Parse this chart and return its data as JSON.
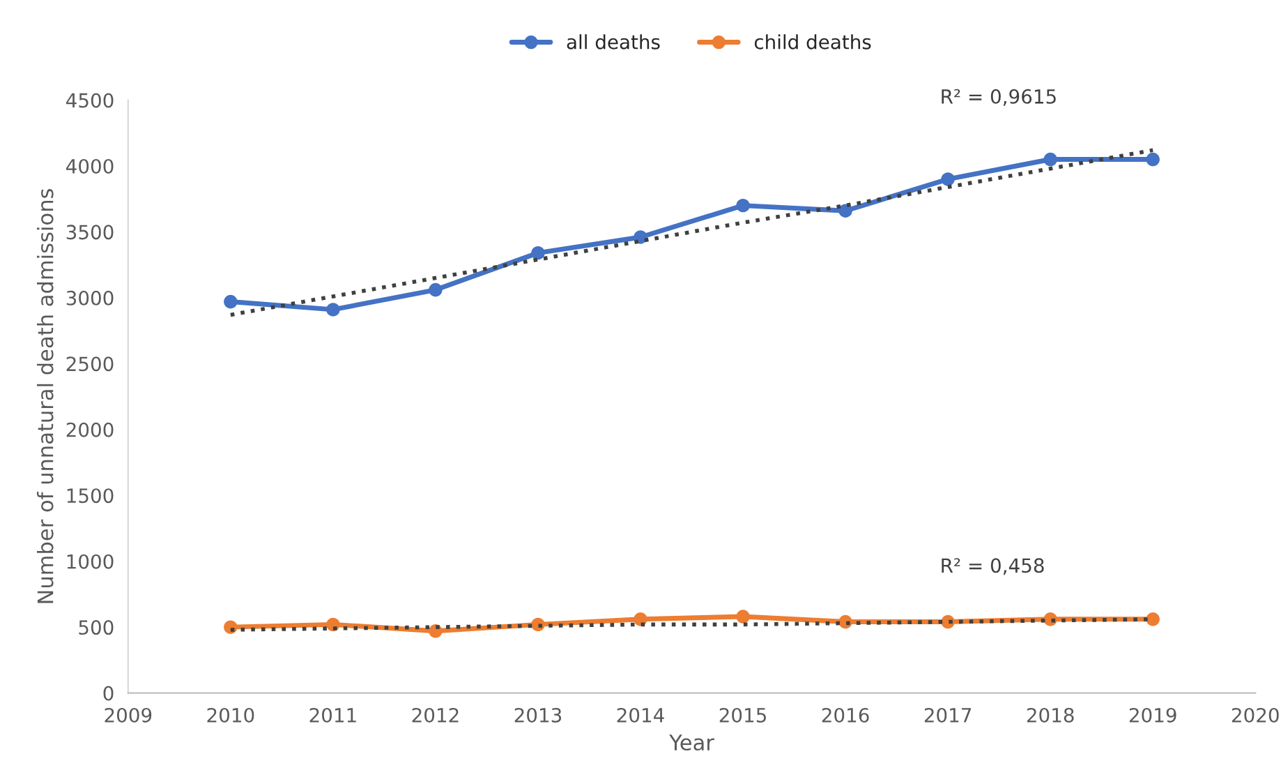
{
  "chart_data": {
    "type": "line",
    "xlabel": "Year",
    "ylabel": "Number of unnatural death admissions",
    "x": [
      2010,
      2011,
      2012,
      2013,
      2014,
      2015,
      2016,
      2017,
      2018,
      2019
    ],
    "series": [
      {
        "name": "all deaths",
        "color": "#4472c4",
        "values": [
          2970,
          2910,
          3060,
          3340,
          3460,
          3700,
          3660,
          3900,
          4050,
          4050
        ],
        "marker": "circle",
        "line_style": "solid"
      },
      {
        "name": "child deaths",
        "color": "#ed7d31",
        "values": [
          500,
          520,
          470,
          520,
          560,
          580,
          540,
          540,
          560,
          560
        ],
        "marker": "circle",
        "line_style": "solid"
      },
      {
        "type": "line",
        "color": "#404040",
        "values": [
          2870,
          3010,
          3150,
          3290,
          3430,
          3570,
          3700,
          3840,
          3980,
          4120
        ],
        "marker": "none",
        "line_style": "dotted"
      },
      {
        "type": "line",
        "color": "#404040",
        "values": [
          480,
          490,
          500,
          510,
          520,
          520,
          530,
          540,
          550,
          560
        ],
        "marker": "none",
        "line_style": "dotted"
      }
    ],
    "annotations": [
      "R² = 0,9615",
      "R² = 0,458"
    ],
    "xlim": [
      2009,
      2020
    ],
    "xticks": [
      2009,
      2010,
      2011,
      2012,
      2013,
      2014,
      2015,
      2016,
      2017,
      2018,
      2019,
      2020
    ],
    "ylim": [
      0,
      4500
    ],
    "yticks": [
      0,
      500,
      1000,
      1500,
      2000,
      2500,
      3000,
      3500,
      4000,
      4500
    ],
    "grid": false,
    "legend": "top"
  }
}
